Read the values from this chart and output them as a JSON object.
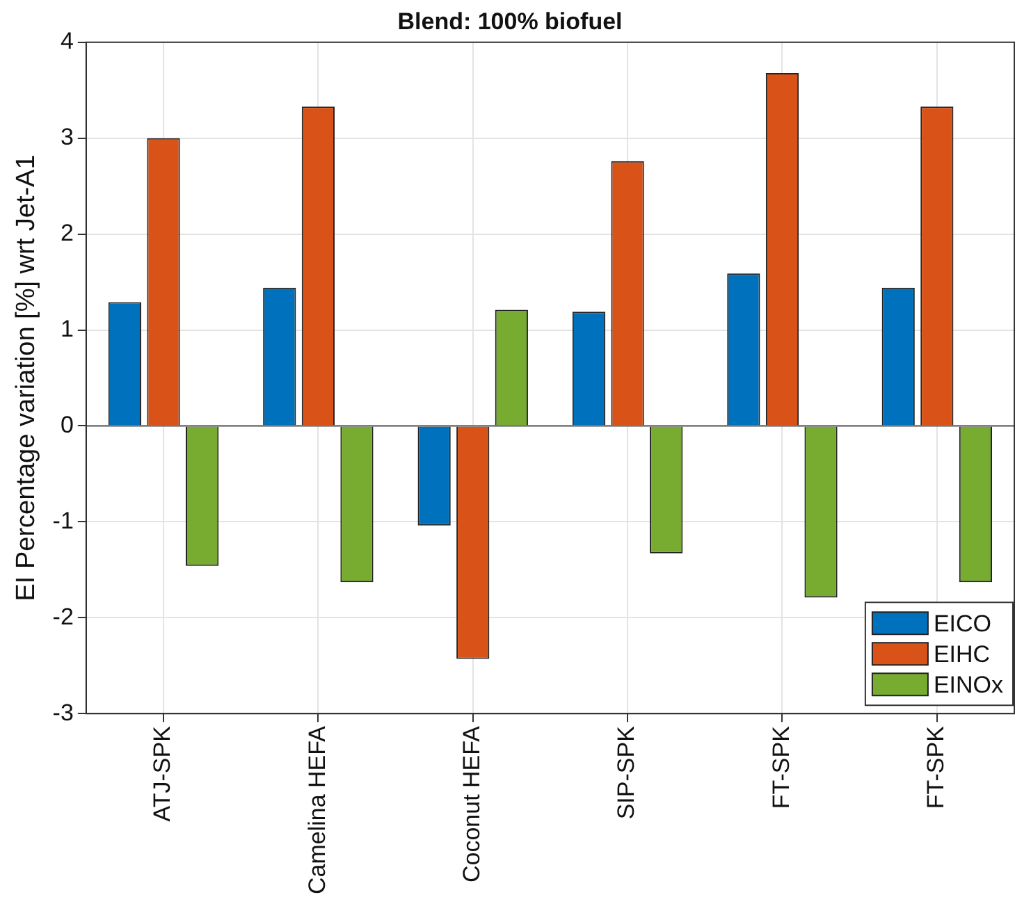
{
  "chart_data": {
    "type": "bar",
    "title": "Blend: 100% biofuel",
    "ylabel": "EI Percentage variation [%] wrt Jet-A1",
    "categories": [
      "ATJ-SPK",
      "Camelina HEFA",
      "Coconut HEFA",
      "SIP-SPK",
      "FT-SPK",
      "FT-SPK"
    ],
    "series": [
      {
        "name": "EICO",
        "color": "#0072bd",
        "values": [
          1.29,
          1.44,
          -1.04,
          1.19,
          1.59,
          1.44
        ]
      },
      {
        "name": "EIHC",
        "color": "#d95319",
        "values": [
          3.0,
          3.33,
          -2.43,
          2.76,
          3.68,
          3.33
        ]
      },
      {
        "name": "EINOx",
        "color": "#77ac30",
        "values": [
          -1.46,
          -1.63,
          1.21,
          -1.33,
          -1.79,
          -1.63
        ]
      }
    ],
    "ylim": [
      -3,
      4
    ],
    "yticks": [
      -3,
      -2,
      -1,
      0,
      1,
      2,
      3,
      4
    ],
    "grid": true,
    "legend": "bottom right"
  }
}
